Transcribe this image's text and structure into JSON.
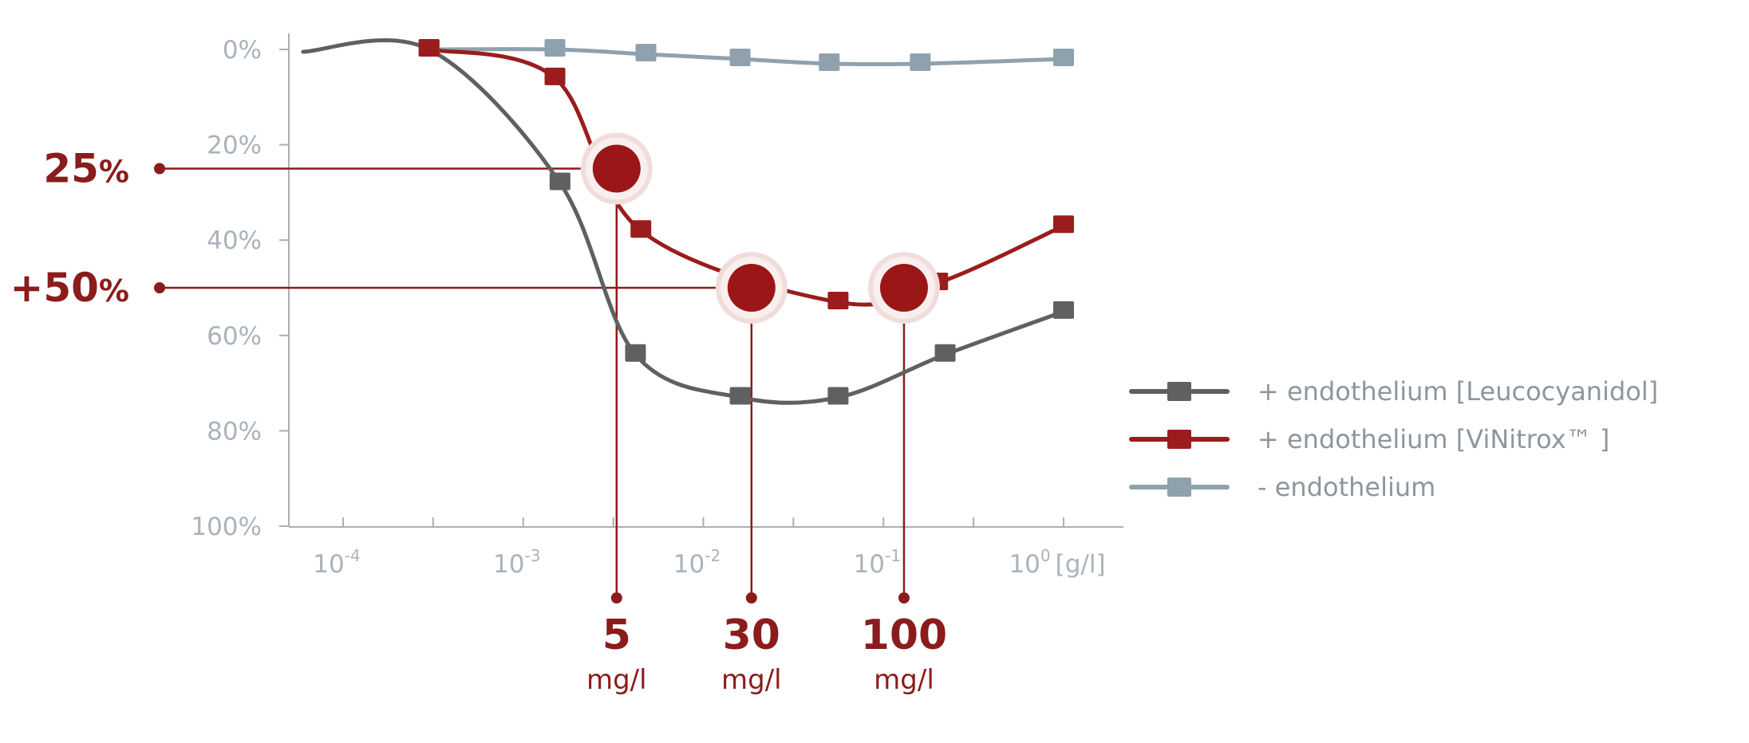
{
  "chart_data": {
    "type": "line",
    "x_scale": "log",
    "x_tick_labels": [
      {
        "value": 0.0001,
        "base": "10",
        "exp": "-4"
      },
      {
        "value": 0.001,
        "base": "10",
        "exp": "-3"
      },
      {
        "value": 0.01,
        "base": "10",
        "exp": "-2"
      },
      {
        "value": 0.1,
        "base": "10",
        "exp": "-1"
      },
      {
        "value": 1,
        "base": "10",
        "exp": "0"
      }
    ],
    "x_unit": "[g/l]",
    "y_tick_labels": [
      "0%",
      "20%",
      "40%",
      "60%",
      "80%",
      "100%"
    ],
    "y_ticks": [
      0,
      20,
      40,
      60,
      80,
      100
    ],
    "ylim": [
      0,
      100
    ],
    "y_inverted": true,
    "xlim": [
      5e-05,
      1.6
    ],
    "series": [
      {
        "name": "+ endothelium [Leucocyanidol]",
        "color": "#5f6061",
        "line_start": [
          6e-05,
          0.5
        ],
        "x": [
          0.0003,
          0.0016,
          0.0042,
          0.016,
          0.056,
          0.22,
          1
        ],
        "y": [
          0,
          28,
          64,
          73,
          73,
          64,
          55
        ]
      },
      {
        "name": "+ endothelium [ViNitrox™ ]",
        "color": "#9b1c1c",
        "line_start": null,
        "x": [
          0.0003,
          0.0015,
          0.0045,
          0.056,
          0.2,
          1
        ],
        "y": [
          0,
          6,
          38,
          53,
          49,
          37
        ]
      },
      {
        "name": "- endothelium",
        "color": "#8fa1ad",
        "line_start": null,
        "x": [
          0.0003,
          0.0015,
          0.0048,
          0.016,
          0.05,
          0.16,
          1
        ],
        "y": [
          0,
          0,
          1,
          2,
          3,
          3,
          2
        ]
      }
    ],
    "highlights": [
      {
        "x": 0.0033,
        "y": 25,
        "x_label": "5",
        "x_unit": "mg/l",
        "y_label": "25",
        "y_label_suffix": "%"
      },
      {
        "x": 0.0185,
        "y": 50,
        "x_label": "30",
        "x_unit": "mg/l",
        "y_label": "+50",
        "y_label_suffix": "%"
      },
      {
        "x": 0.13,
        "y": 50,
        "x_label": "100",
        "x_unit": "mg/l",
        "y_label": null,
        "y_label_suffix": null
      }
    ],
    "legend_position": "right",
    "grid": false
  }
}
